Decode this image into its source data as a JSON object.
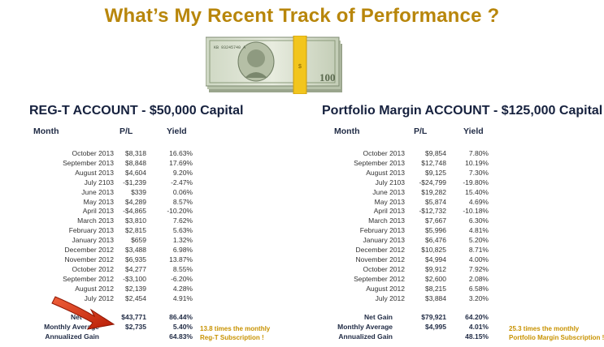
{
  "title": "What’s My Recent Track of Performance ?",
  "image": {
    "icon": "dollar-bills-icon"
  },
  "accounts": [
    {
      "title": "REG-T ACCOUNT - $50,000 Capital",
      "headers": {
        "month": "Month",
        "pl": "P/L",
        "yield": "Yield"
      },
      "rows": [
        {
          "month": "October 2013",
          "pl": "$8,318",
          "yield": "16.63%"
        },
        {
          "month": "September 2013",
          "pl": "$8,848",
          "yield": "17.69%"
        },
        {
          "month": "August 2013",
          "pl": "$4,604",
          "yield": "9.20%"
        },
        {
          "month": "July 2103",
          "pl": "-$1,239",
          "yield": "-2.47%"
        },
        {
          "month": "June 2013",
          "pl": "$339",
          "yield": "0.06%"
        },
        {
          "month": "May 2013",
          "pl": "$4,289",
          "yield": "8.57%"
        },
        {
          "month": "April 2013",
          "pl": "-$4,865",
          "yield": "-10.20%"
        },
        {
          "month": "March 2013",
          "pl": "$3,810",
          "yield": "7.62%"
        },
        {
          "month": "February 2013",
          "pl": "$2,815",
          "yield": "5.63%"
        },
        {
          "month": "January 2013",
          "pl": "$659",
          "yield": "1.32%"
        },
        {
          "month": "December 2012",
          "pl": "$3,488",
          "yield": "6.98%"
        },
        {
          "month": "November 2012",
          "pl": "$6,935",
          "yield": "13.87%"
        },
        {
          "month": "October 2012",
          "pl": "$4,277",
          "yield": "8.55%"
        },
        {
          "month": "September 2012",
          "pl": "-$3,100",
          "yield": "-6.20%"
        },
        {
          "month": "August 2012",
          "pl": "$2,139",
          "yield": "4.28%"
        },
        {
          "month": "July 2012",
          "pl": "$2,454",
          "yield": "4.91%"
        }
      ],
      "summary": [
        {
          "label": "Net Gain",
          "pl": "$43,771",
          "yield": "86.44%"
        },
        {
          "label": "Monthly Average",
          "pl": "$2,735",
          "yield": "5.40%"
        },
        {
          "label": "Annualized Gain",
          "pl": "",
          "yield": "64.83%"
        }
      ],
      "note": [
        "13.8 times the monthly",
        "Reg-T Subscription !"
      ]
    },
    {
      "title": "Portfolio Margin ACCOUNT - $125,000 Capital",
      "headers": {
        "month": "Month",
        "pl": "P/L",
        "yield": "Yield"
      },
      "rows": [
        {
          "month": "October 2013",
          "pl": "$9,854",
          "yield": "7.80%"
        },
        {
          "month": "September 2013",
          "pl": "$12,748",
          "yield": "10.19%"
        },
        {
          "month": "August 2013",
          "pl": "$9,125",
          "yield": "7.30%"
        },
        {
          "month": "July 2103",
          "pl": "-$24,799",
          "yield": "-19.80%"
        },
        {
          "month": "June 2013",
          "pl": "$19,282",
          "yield": "15.40%"
        },
        {
          "month": "May 2013",
          "pl": "$5,874",
          "yield": "4.69%"
        },
        {
          "month": "April 2013",
          "pl": "-$12,732",
          "yield": "-10.18%"
        },
        {
          "month": "March 2013",
          "pl": "$7,667",
          "yield": "6.30%"
        },
        {
          "month": "February 2013",
          "pl": "$5,996",
          "yield": "4.81%"
        },
        {
          "month": "January 2013",
          "pl": "$6,476",
          "yield": "5.20%"
        },
        {
          "month": "December 2012",
          "pl": "$10,825",
          "yield": "8.71%"
        },
        {
          "month": "November 2012",
          "pl": "$4,994",
          "yield": "4.00%"
        },
        {
          "month": "October 2012",
          "pl": "$9,912",
          "yield": "7.92%"
        },
        {
          "month": "September 2012",
          "pl": "$2,600",
          "yield": "2.08%"
        },
        {
          "month": "August 2012",
          "pl": "$8,215",
          "yield": "6.58%"
        },
        {
          "month": "July 2012",
          "pl": "$3,884",
          "yield": "3.20%"
        }
      ],
      "summary": [
        {
          "label": "Net Gain",
          "pl": "$79,921",
          "yield": "64.20%"
        },
        {
          "label": "Monthly Average",
          "pl": "$4,995",
          "yield": "4.01%"
        },
        {
          "label": "Annualized Gain",
          "pl": "",
          "yield": "48.15%"
        }
      ],
      "note": [
        "25.3 times the monthly",
        "Portfolio Margin Subscription !"
      ]
    }
  ],
  "colors": {
    "title": "#b8860b",
    "note": "#c89200",
    "arrow": "#d42a0c"
  }
}
